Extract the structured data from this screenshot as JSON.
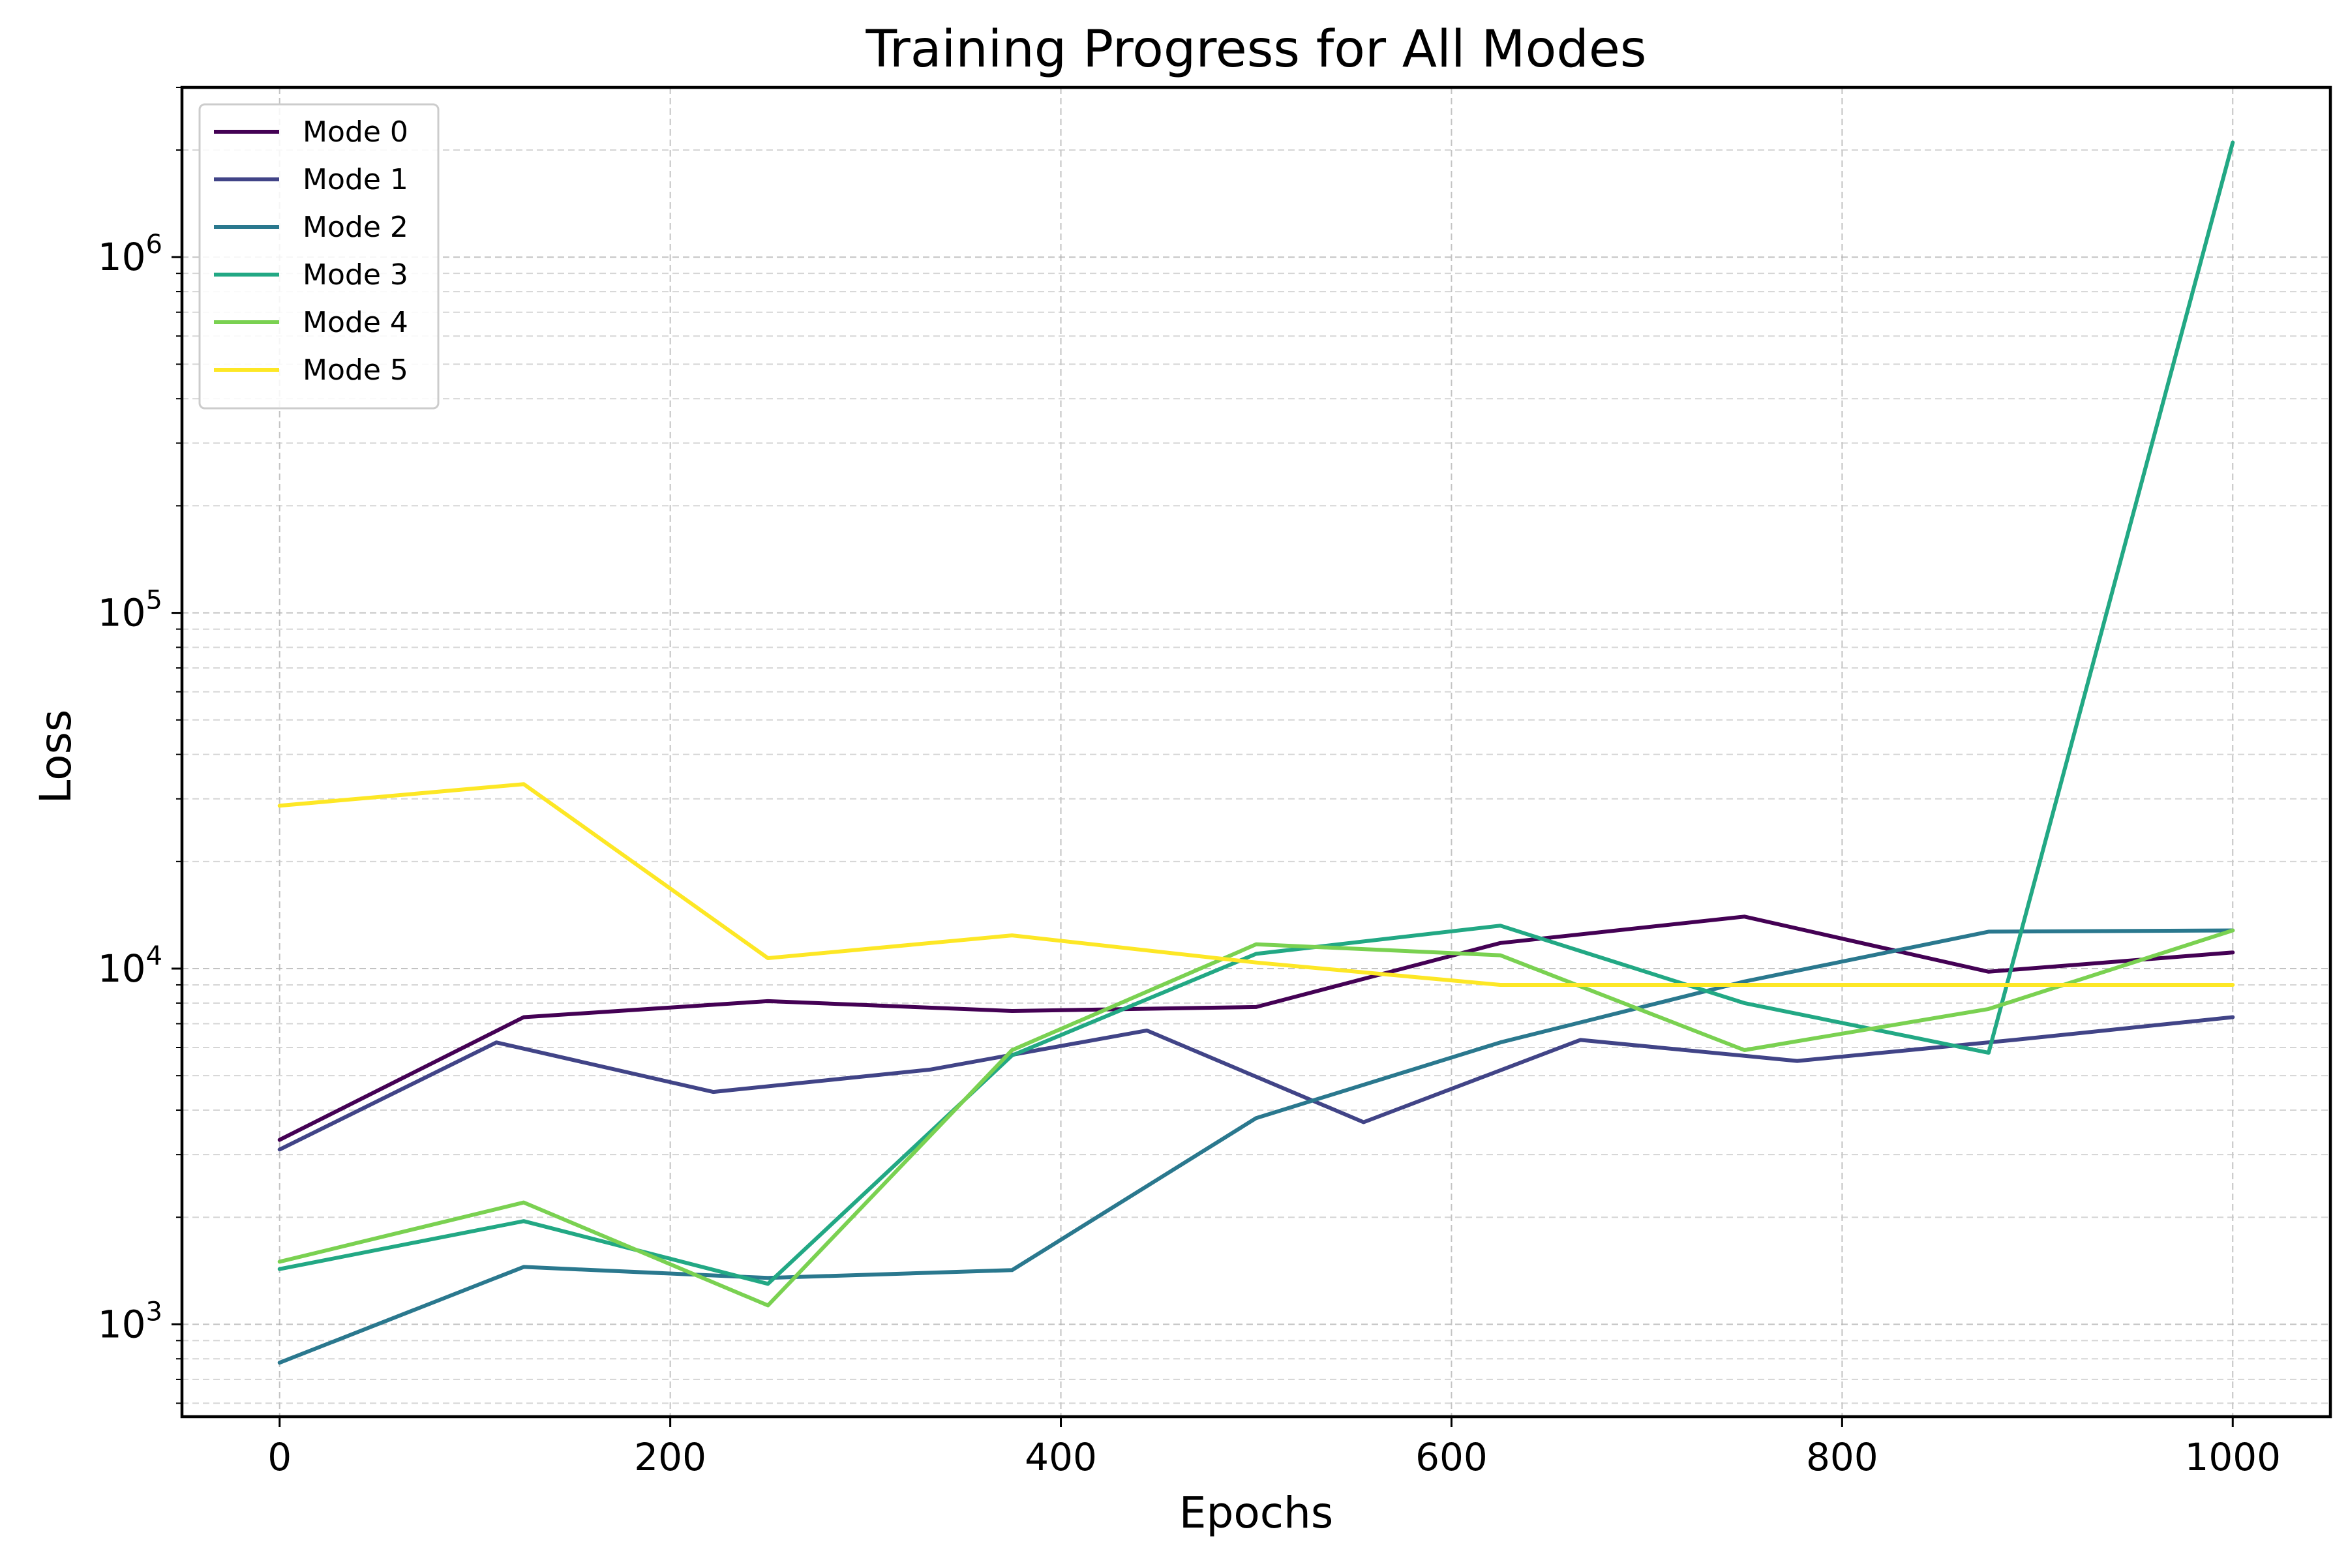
{
  "chart_data": {
    "type": "line",
    "title": "Training Progress for All Modes",
    "xlabel": "Epochs",
    "ylabel": "Loss",
    "yscale": "log",
    "xlim": [
      -50,
      1050
    ],
    "ylim": [
      550,
      3000000
    ],
    "xticks": [
      0,
      200,
      400,
      600,
      800,
      1000
    ],
    "xtick_labels": [
      "0",
      "200",
      "400",
      "600",
      "800",
      "1000"
    ],
    "yticks": [
      {
        "value": 1000,
        "base": "10",
        "exp": "3"
      },
      {
        "value": 10000,
        "base": "10",
        "exp": "4"
      },
      {
        "value": 100000,
        "base": "10",
        "exp": "5"
      },
      {
        "value": 1000000,
        "base": "10",
        "exp": "6"
      }
    ],
    "grid": true,
    "legend_position": "upper-left",
    "series": [
      {
        "name": "Mode 0",
        "color": "#440154",
        "x": [
          0,
          125,
          250,
          375,
          500,
          625,
          750,
          875,
          1000
        ],
        "y": [
          3300,
          7300,
          8100,
          7600,
          7800,
          11800,
          14000,
          9800,
          11100
        ]
      },
      {
        "name": "Mode 1",
        "color": "#414487",
        "x": [
          0,
          111,
          222,
          333,
          444,
          555,
          666,
          777,
          888,
          1000
        ],
        "y": [
          3100,
          6200,
          4500,
          5200,
          6700,
          3700,
          6300,
          5500,
          6300,
          7300
        ]
      },
      {
        "name": "Mode 2",
        "color": "#2a788e",
        "x": [
          0,
          125,
          250,
          375,
          500,
          625,
          750,
          875,
          1000
        ],
        "y": [
          780,
          1450,
          1350,
          1420,
          3800,
          6200,
          9200,
          12700,
          12800
        ]
      },
      {
        "name": "Mode 3",
        "color": "#22a884",
        "x": [
          0,
          125,
          250,
          375,
          500,
          625,
          750,
          875,
          1000
        ],
        "y": [
          1430,
          1950,
          1300,
          5700,
          11000,
          13200,
          8000,
          5800,
          2100000
        ]
      },
      {
        "name": "Mode 4",
        "color": "#7ad151",
        "x": [
          0,
          125,
          250,
          375,
          500,
          625,
          750,
          875,
          1000
        ],
        "y": [
          1500,
          2200,
          1130,
          5900,
          11700,
          10900,
          5900,
          7700,
          12800
        ]
      },
      {
        "name": "Mode 5",
        "color": "#fde725",
        "x": [
          0,
          125,
          250,
          375,
          500,
          625,
          750,
          875,
          1000
        ],
        "y": [
          28700,
          33000,
          10700,
          12400,
          10400,
          9000,
          9000,
          9000,
          9000
        ]
      }
    ]
  }
}
